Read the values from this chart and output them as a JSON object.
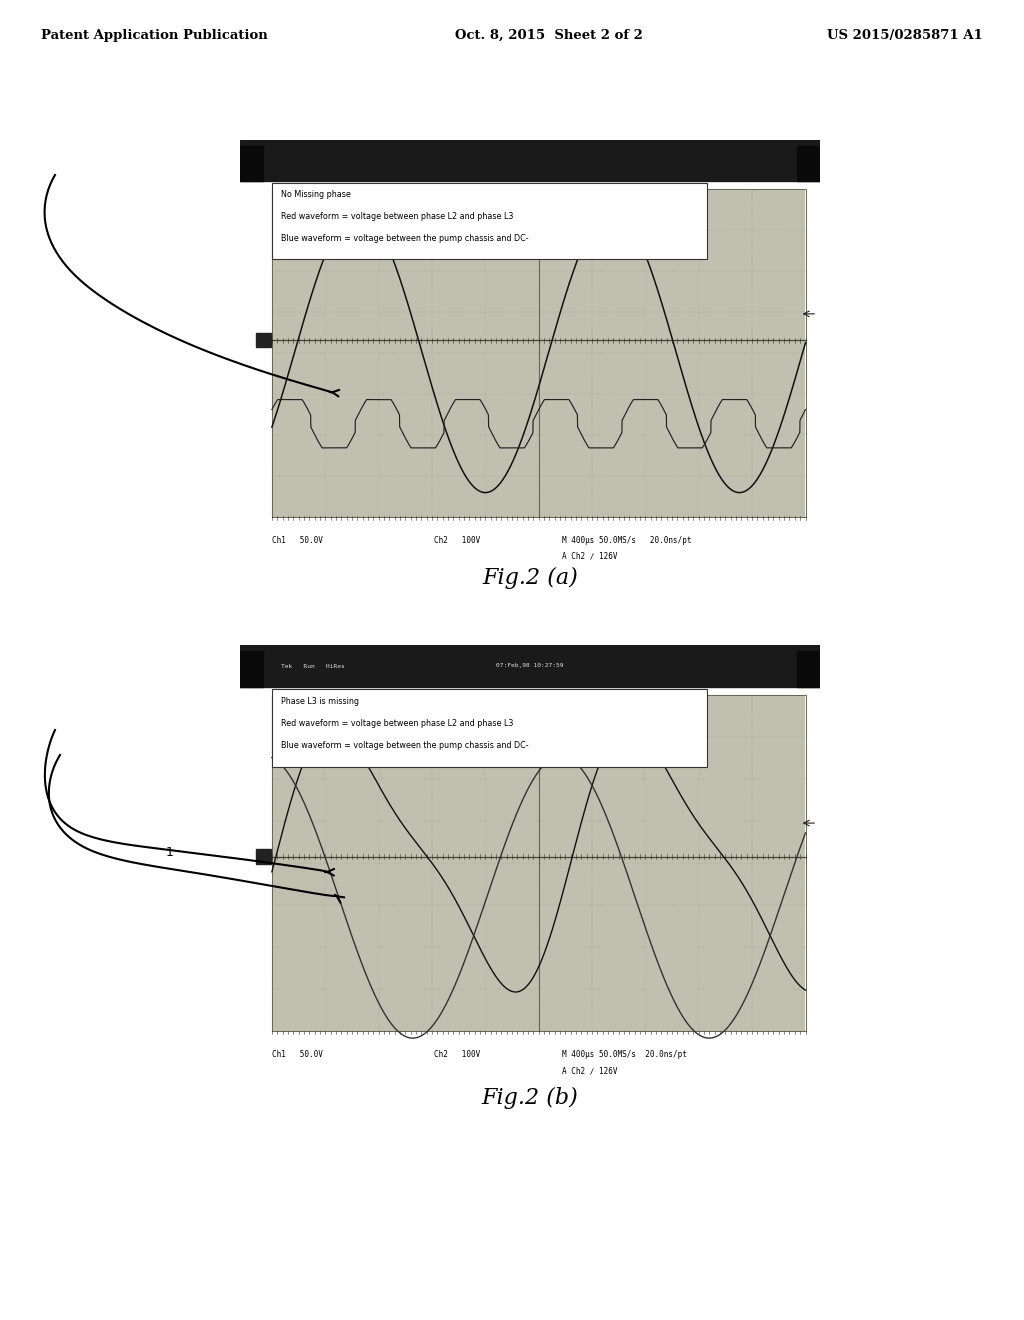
{
  "background_color": "#ffffff",
  "header_text_left": "Patent Application Publication",
  "header_text_center": "Oct. 8, 2015  Sheet 2 of 2",
  "header_text_right": "US 2015/0285871 A1",
  "fig_a_label": "Fig.2 (a)",
  "fig_b_label": "Fig.2 (b)",
  "fig_a_legend_lines": [
    "No Missing phase",
    "Red waveform = voltage between phase L2 and phase L3",
    "Blue waveform = voltage between the pump chassis and DC-"
  ],
  "fig_b_legend_lines": [
    "Phase L3 is missing",
    "Red waveform = voltage between phase L2 and phase L3",
    "Blue waveform = voltage between the pump chassis and DC-"
  ],
  "fig_a_ch1": "Ch1   50.0V",
  "fig_a_ch2": "Ch2   100V",
  "fig_a_time": "M 400μs 50.0MS/s   20.0ns/pt",
  "fig_a_ach2": "A Ch2 ∕ 126V",
  "fig_b_ch1": "Ch1   50.0V",
  "fig_b_ch2": "Ch2   100V",
  "fig_b_time": "M 400μs 50.0MS/s  20.0ns/pt",
  "fig_b_ach2": "A Ch2 ∕ 126V",
  "osc_bg": "#c8c8b8",
  "osc_header_bg": "#282828",
  "header_line_color": "#555555"
}
